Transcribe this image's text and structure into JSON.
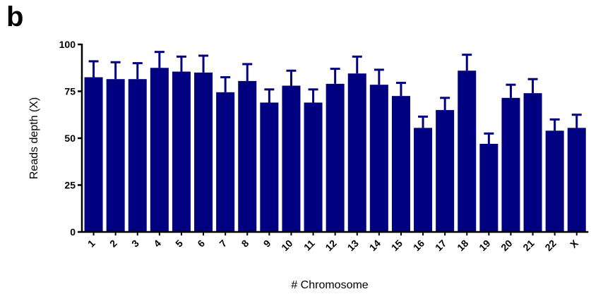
{
  "panel_label": "b",
  "chart_data": {
    "type": "bar",
    "title": "",
    "xlabel": "# Chromosome",
    "ylabel": "Reads depth (X)",
    "ylim": [
      0,
      100
    ],
    "yticks": [
      "0",
      "25",
      "50",
      "75",
      "100"
    ],
    "categories": [
      "1",
      "2",
      "3",
      "4",
      "5",
      "6",
      "7",
      "8",
      "9",
      "10",
      "11",
      "12",
      "13",
      "14",
      "15",
      "16",
      "17",
      "18",
      "19",
      "20",
      "21",
      "22",
      "X"
    ],
    "values": [
      82.5,
      81.5,
      81.5,
      87.5,
      85.5,
      85,
      74.5,
      80.5,
      69,
      78,
      69,
      79,
      84.5,
      78.5,
      72.5,
      55.5,
      65,
      86,
      47,
      71.5,
      74,
      54,
      55.5
    ],
    "error_upper": [
      91,
      90.5,
      90,
      96,
      93.5,
      94,
      82.5,
      89.5,
      76,
      86,
      76,
      87,
      93.5,
      86.5,
      79.5,
      61.5,
      71.5,
      94.5,
      52.5,
      78.5,
      81.5,
      60,
      62.5
    ],
    "bar_color": "#000080",
    "grid": false,
    "x_tick_rotation": -45
  }
}
